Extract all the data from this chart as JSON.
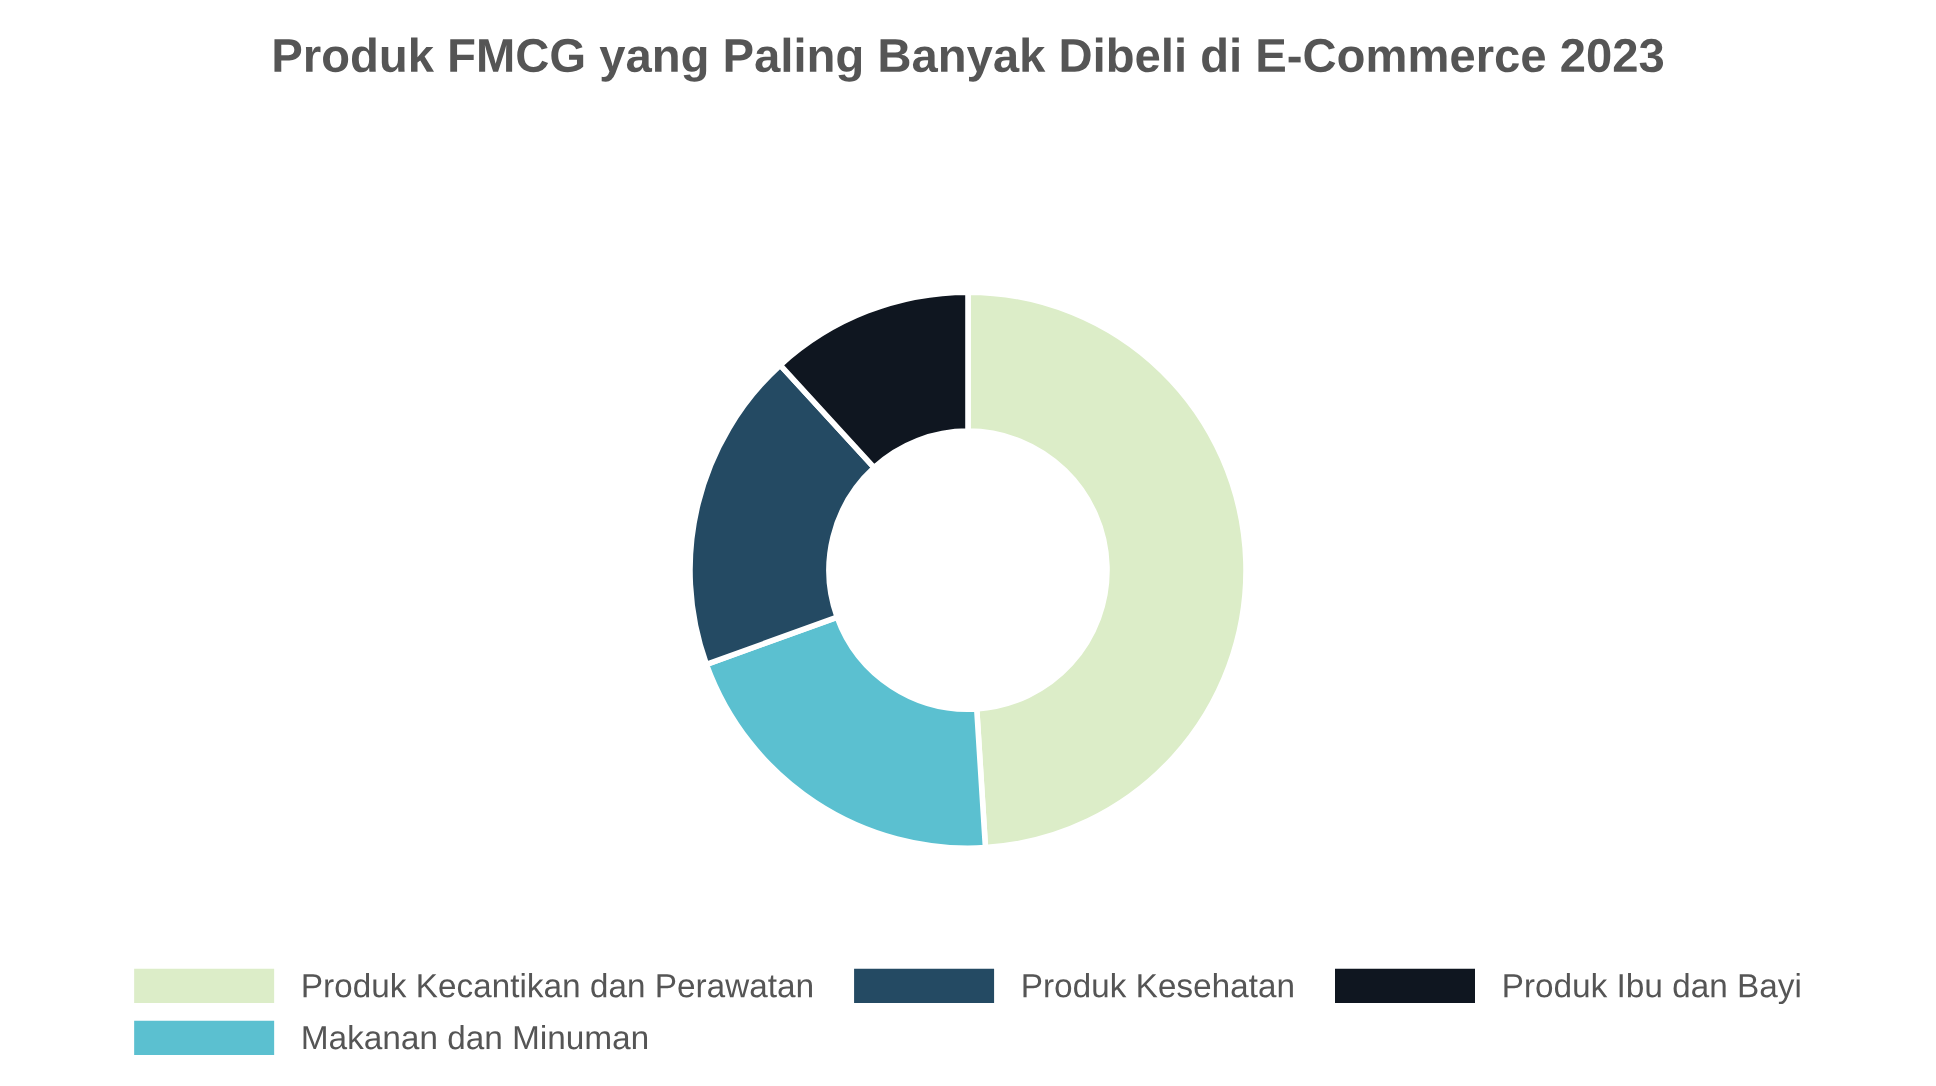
{
  "chart_data": {
    "type": "donut",
    "title": "Produk FMCG yang Paling Banyak Dibeli di E-Commerce 2023",
    "categories": [
      "Produk Kecantikan dan Perawatan",
      "Makanan dan Minuman",
      "Produk Kesehatan",
      "Produk Ibu dan Bayi"
    ],
    "values": [
      49,
      20.5,
      18.7,
      11.8
    ],
    "colors": [
      "#dcedc8",
      "#5bc0d0",
      "#244a63",
      "#0f1620"
    ],
    "legend": "bottom"
  }
}
